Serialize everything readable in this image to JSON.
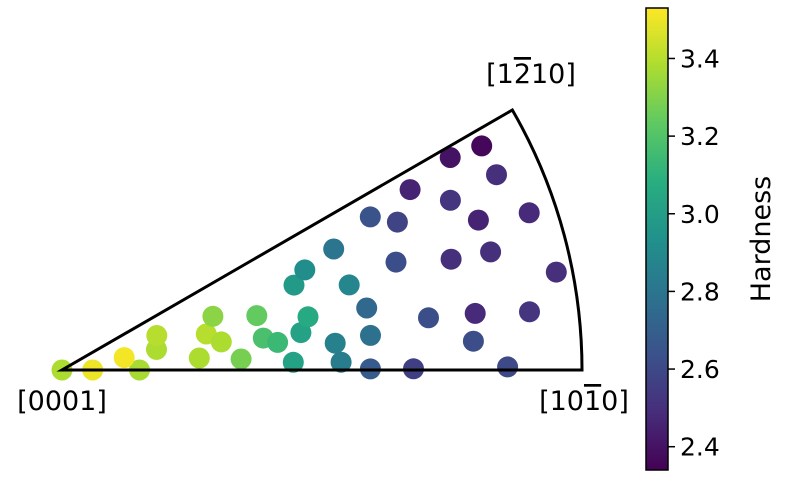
{
  "chart_data": {
    "type": "scatter",
    "title": "",
    "corner_labels": {
      "origin": "[0001]",
      "right": "[10",
      "right_bar": "1",
      "right_end": "0]",
      "top": "[1",
      "top_bar": "2",
      "top_end": "10]"
    },
    "colorbar": {
      "label": "Hardness",
      "colormap": "viridis",
      "range": [
        2.34,
        3.53
      ],
      "ticks": [
        "2.4",
        "2.6",
        "2.8",
        "3.0",
        "3.2",
        "3.4"
      ],
      "tick_values": [
        2.4,
        2.6,
        2.8,
        3.0,
        3.2,
        3.4
      ]
    },
    "points_note": "r = normalized radial position in the IPF sector (0 at [0001], 1 at arc), theta = angle from the [0001]-[10-10] edge in degrees (0 to 30), value = Hardness",
    "points": [
      {
        "r": 0.0,
        "theta": 0,
        "value": 3.38
      },
      {
        "r": 0.059,
        "theta": 0,
        "value": 3.5
      },
      {
        "r": 0.149,
        "theta": 0,
        "value": 3.37
      },
      {
        "r": 0.122,
        "theta": 11.3,
        "value": 3.51
      },
      {
        "r": 0.186,
        "theta": 12.3,
        "value": 3.38
      },
      {
        "r": 0.194,
        "theta": 20.0,
        "value": 3.4
      },
      {
        "r": 0.265,
        "theta": 5.0,
        "value": 3.38
      },
      {
        "r": 0.286,
        "theta": 14.0,
        "value": 3.4
      },
      {
        "r": 0.311,
        "theta": 10.0,
        "value": 3.38
      },
      {
        "r": 0.308,
        "theta": 19.6,
        "value": 3.32
      },
      {
        "r": 0.345,
        "theta": 3.5,
        "value": 3.28
      },
      {
        "r": 0.389,
        "theta": 15.6,
        "value": 3.24
      },
      {
        "r": 0.392,
        "theta": 9.0,
        "value": 3.18
      },
      {
        "r": 0.418,
        "theta": 7.3,
        "value": 3.14
      },
      {
        "r": 0.445,
        "theta": 1.9,
        "value": 3.02
      },
      {
        "r": 0.465,
        "theta": 8.9,
        "value": 3.02
      },
      {
        "r": 0.484,
        "theta": 12.2,
        "value": 3.06
      },
      {
        "r": 0.475,
        "theta": 20.1,
        "value": 2.98
      },
      {
        "r": 0.505,
        "theta": 22.4,
        "value": 2.92
      },
      {
        "r": 0.528,
        "theta": 5.6,
        "value": 2.86
      },
      {
        "r": 0.537,
        "theta": 1.6,
        "value": 2.84
      },
      {
        "r": 0.576,
        "theta": 16.5,
        "value": 2.88
      },
      {
        "r": 0.572,
        "theta": 24.0,
        "value": 2.8
      },
      {
        "r": 0.597,
        "theta": 6.4,
        "value": 2.78
      },
      {
        "r": 0.598,
        "theta": 11.5,
        "value": 2.74
      },
      {
        "r": 0.593,
        "theta": 0.2,
        "value": 2.68
      },
      {
        "r": 0.662,
        "theta": 26.4,
        "value": 2.64
      },
      {
        "r": 0.675,
        "theta": 17.9,
        "value": 2.62
      },
      {
        "r": 0.705,
        "theta": 23.8,
        "value": 2.58
      },
      {
        "r": 0.676,
        "theta": 0.2,
        "value": 2.56
      },
      {
        "r": 0.712,
        "theta": 8.1,
        "value": 2.62
      },
      {
        "r": 0.754,
        "theta": 27.4,
        "value": 2.46
      },
      {
        "r": 0.778,
        "theta": 15.9,
        "value": 2.5
      },
      {
        "r": 0.793,
        "theta": 4.0,
        "value": 2.62
      },
      {
        "r": 0.815,
        "theta": 23.6,
        "value": 2.52
      },
      {
        "r": 0.851,
        "theta": 28.7,
        "value": 2.4
      },
      {
        "r": 0.802,
        "theta": 7.8,
        "value": 2.48
      },
      {
        "r": 0.855,
        "theta": 15.4,
        "value": 2.5
      },
      {
        "r": 0.851,
        "theta": 19.8,
        "value": 2.46
      },
      {
        "r": 0.857,
        "theta": 0.4,
        "value": 2.6
      },
      {
        "r": 0.915,
        "theta": 28.1,
        "value": 2.36
      },
      {
        "r": 0.916,
        "theta": 24.2,
        "value": 2.5
      },
      {
        "r": 0.906,
        "theta": 7.1,
        "value": 2.52
      },
      {
        "r": 0.948,
        "theta": 18.6,
        "value": 2.48
      },
      {
        "r": 0.969,
        "theta": 11.2,
        "value": 2.5
      }
    ]
  }
}
